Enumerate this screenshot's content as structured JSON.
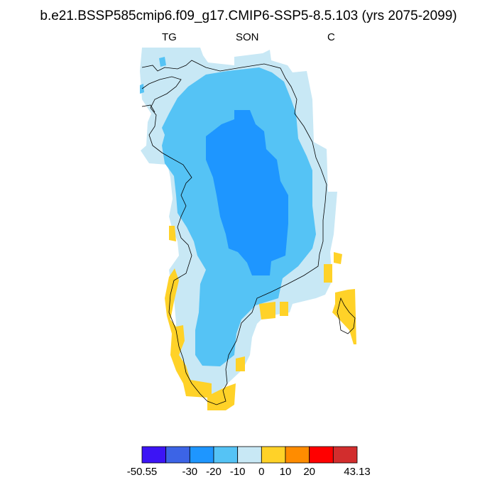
{
  "title": "b.e21.BSSP585cmip6.f09_g17.CMIP6-SSP5-8.5.103 (yrs 2075-2099)",
  "subtitles": {
    "left": "TG",
    "center": "SON",
    "right": "C"
  },
  "colorbar": {
    "colors": [
      "#3c14f5",
      "#3c64e6",
      "#1e96ff",
      "#55c3f5",
      "#c8e8f5",
      "#ffd228",
      "#ff8c00",
      "#ff0000",
      "#d22d2d"
    ],
    "labels": [
      "-50.55",
      "-30",
      "-20",
      "-10",
      "0",
      "10",
      "20",
      "43.13"
    ]
  },
  "chart_data": {
    "type": "heatmap",
    "variable": "TG",
    "season": "SON",
    "units": "C",
    "range": [
      -50.55,
      43.13
    ],
    "levels": [
      -30,
      -20,
      -10,
      0,
      10,
      20
    ],
    "region": "Greenland",
    "pattern": "Interior ice sheet colder (-30 to -20 core), decreasing to -10..0 toward coasts; coastal fringe 0..10 along the southwest and southeast."
  }
}
